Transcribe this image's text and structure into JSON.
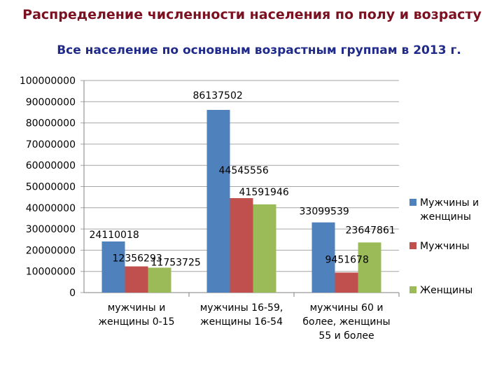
{
  "header": {
    "title": "Распределение численности населения по полу и возрасту"
  },
  "chart_data": {
    "type": "bar",
    "title": "Все население по основным возрастным группам в 2013 г.",
    "categories": [
      [
        "мужчины и",
        "женщины 0-15"
      ],
      [
        "мужчины 16-59,",
        "женщины 16-54"
      ],
      [
        "мужчины 60 и",
        "более, женщины",
        "55 и более"
      ]
    ],
    "series": [
      {
        "name": [
          "Мужчины и",
          "женщины"
        ],
        "values": [
          24110018,
          86137502,
          33099539
        ],
        "color": "#4f81bd"
      },
      {
        "name": [
          "Мужчины"
        ],
        "values": [
          12356293,
          44545556,
          9451678
        ],
        "color": "#c0504d"
      },
      {
        "name": [
          "Женщины"
        ],
        "values": [
          11753725,
          41591946,
          23647861
        ],
        "color": "#9bbb59"
      }
    ],
    "data_labels": [
      [
        "24110018",
        "86137502",
        "33099539"
      ],
      [
        "12356293",
        "44545556",
        "9451678"
      ],
      [
        "11753725",
        "41591946",
        "23647861"
      ]
    ],
    "ylim": [
      0,
      100000000
    ],
    "yticks": [
      "0",
      "10000000",
      "20000000",
      "30000000",
      "40000000",
      "50000000",
      "60000000",
      "70000000",
      "80000000",
      "90000000",
      "100000000"
    ],
    "grid": true,
    "legend": "right",
    "xlabel": "",
    "ylabel": ""
  }
}
